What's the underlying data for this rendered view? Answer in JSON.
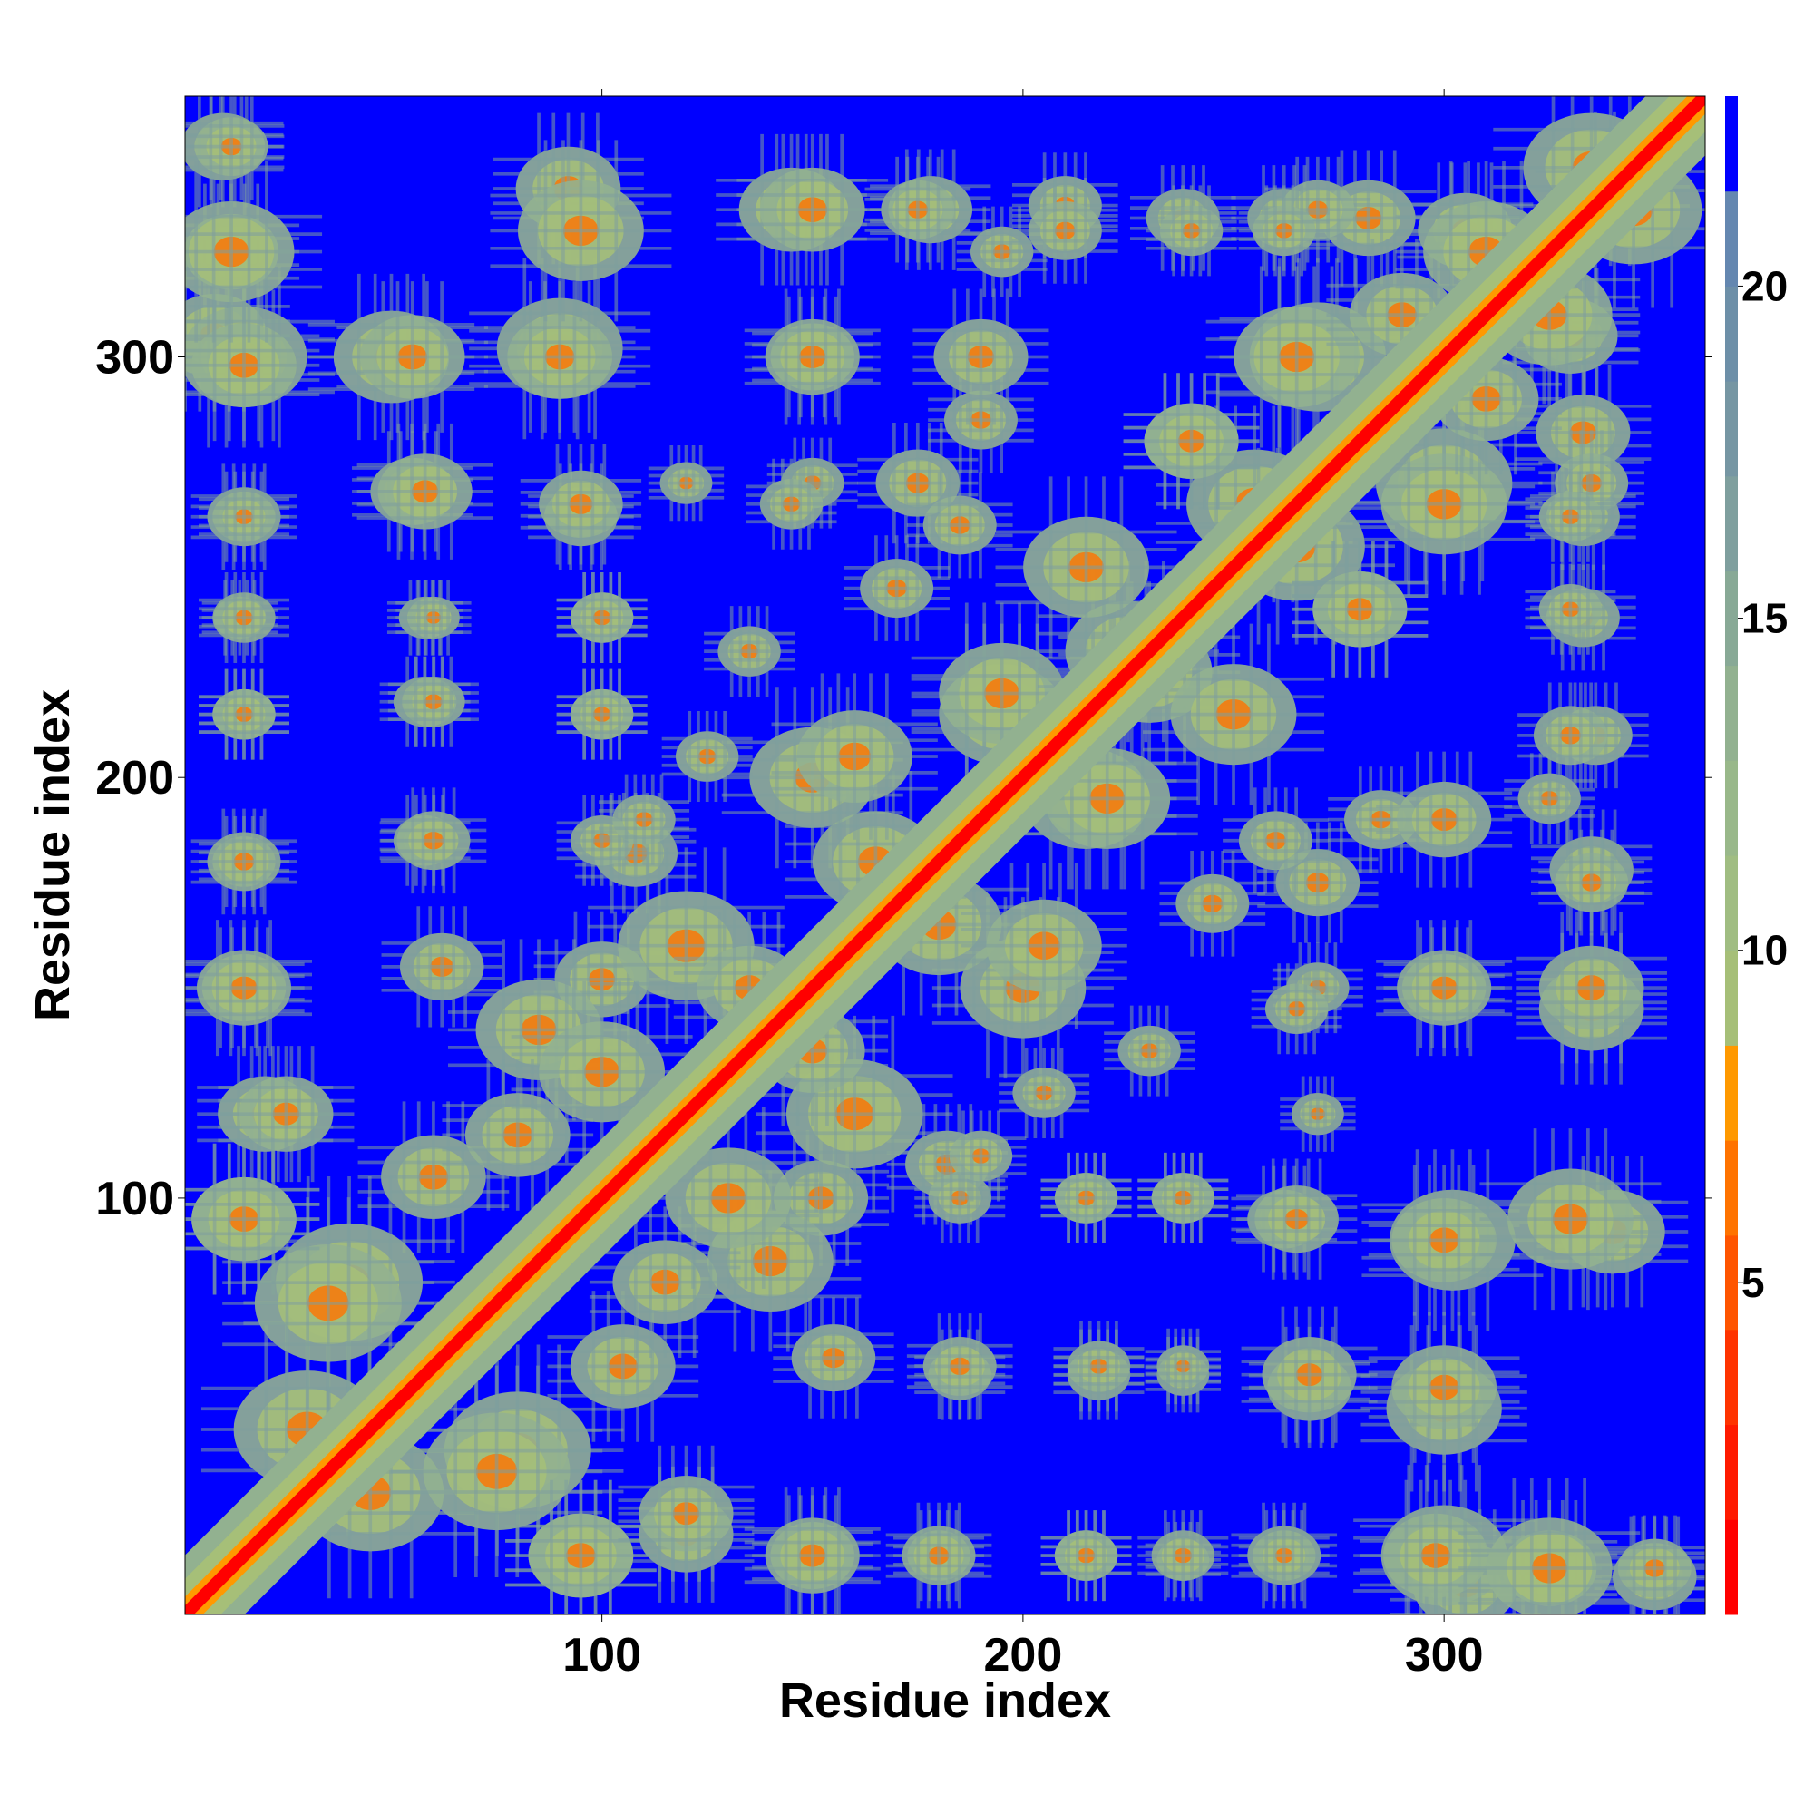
{
  "chart_data": {
    "type": "heatmap",
    "title": "",
    "xlabel": "Residue index",
    "ylabel": "Residue index",
    "residue_count": 362,
    "xlim": [
      1,
      362
    ],
    "ylim": [
      1,
      362
    ],
    "x_ticks": [
      100,
      200,
      300
    ],
    "y_ticks": [
      100,
      200,
      300
    ],
    "colorbar": {
      "ticks": [
        5,
        10,
        15,
        20
      ],
      "range": [
        0,
        22.86
      ],
      "levels": [
        {
          "upper": 1.43,
          "color": "#ff0000"
        },
        {
          "upper": 2.86,
          "color": "#ff1a00"
        },
        {
          "upper": 4.29,
          "color": "#ff3300"
        },
        {
          "upper": 5.71,
          "color": "#ff5500"
        },
        {
          "upper": 7.14,
          "color": "#ff7300"
        },
        {
          "upper": 8.57,
          "color": "#ff9900"
        },
        {
          "upper": 10.0,
          "color": "#a6bf78"
        },
        {
          "upper": 11.43,
          "color": "#a0bd82"
        },
        {
          "upper": 12.86,
          "color": "#99b88a"
        },
        {
          "upper": 14.29,
          "color": "#92b190"
        },
        {
          "upper": 15.71,
          "color": "#88a996"
        },
        {
          "upper": 17.14,
          "color": "#7f9f9e"
        },
        {
          "upper": 18.57,
          "color": "#7696a3"
        },
        {
          "upper": 20.0,
          "color": "#6d8fa8"
        },
        {
          "upper": 21.43,
          "color": "#6487b0"
        },
        {
          "upper": 22.86,
          "color": "#0000ff"
        }
      ]
    },
    "background_color": "#0000ff",
    "diagonal_color": "#ff0000",
    "contact_clusters": [
      {
        "x": 10,
        "y": 350,
        "r": 8
      },
      {
        "x": 12,
        "y": 325,
        "r": 9
      },
      {
        "x": 8,
        "y": 305,
        "r": 10
      },
      {
        "x": 15,
        "y": 300,
        "r": 12
      },
      {
        "x": 50,
        "y": 300,
        "r": 11
      },
      {
        "x": 90,
        "y": 302,
        "r": 12
      },
      {
        "x": 92,
        "y": 340,
        "r": 10
      },
      {
        "x": 145,
        "y": 335,
        "r": 10
      },
      {
        "x": 178,
        "y": 335,
        "r": 8
      },
      {
        "x": 210,
        "y": 336,
        "r": 7
      },
      {
        "x": 238,
        "y": 333,
        "r": 7
      },
      {
        "x": 262,
        "y": 333,
        "r": 7
      },
      {
        "x": 282,
        "y": 333,
        "r": 9
      },
      {
        "x": 305,
        "y": 330,
        "r": 9
      },
      {
        "x": 335,
        "y": 345,
        "r": 13
      },
      {
        "x": 55,
        "y": 268,
        "r": 8
      },
      {
        "x": 15,
        "y": 262,
        "r": 7
      },
      {
        "x": 95,
        "y": 262,
        "r": 7
      },
      {
        "x": 14,
        "y": 238,
        "r": 5
      },
      {
        "x": 58,
        "y": 238,
        "r": 5
      },
      {
        "x": 100,
        "y": 238,
        "r": 6
      },
      {
        "x": 15,
        "y": 215,
        "r": 6
      },
      {
        "x": 58,
        "y": 218,
        "r": 6
      },
      {
        "x": 100,
        "y": 215,
        "r": 6
      },
      {
        "x": 15,
        "y": 180,
        "r": 6
      },
      {
        "x": 58,
        "y": 185,
        "r": 6
      },
      {
        "x": 108,
        "y": 182,
        "r": 8
      },
      {
        "x": 15,
        "y": 150,
        "r": 8
      },
      {
        "x": 62,
        "y": 155,
        "r": 8
      },
      {
        "x": 100,
        "y": 152,
        "r": 9
      },
      {
        "x": 20,
        "y": 120,
        "r": 9
      },
      {
        "x": 60,
        "y": 105,
        "r": 10
      },
      {
        "x": 15,
        "y": 95,
        "r": 10
      },
      {
        "x": 40,
        "y": 80,
        "r": 14
      },
      {
        "x": 30,
        "y": 45,
        "r": 14
      },
      {
        "x": 75,
        "y": 35,
        "r": 14
      },
      {
        "x": 95,
        "y": 15,
        "r": 10
      },
      {
        "x": 120,
        "y": 25,
        "r": 9
      },
      {
        "x": 150,
        "y": 15,
        "r": 9
      },
      {
        "x": 180,
        "y": 15,
        "r": 7
      },
      {
        "x": 215,
        "y": 15,
        "r": 6
      },
      {
        "x": 238,
        "y": 15,
        "r": 6
      },
      {
        "x": 262,
        "y": 15,
        "r": 6
      },
      {
        "x": 298,
        "y": 15,
        "r": 10
      },
      {
        "x": 325,
        "y": 12,
        "r": 12
      },
      {
        "x": 350,
        "y": 12,
        "r": 7
      },
      {
        "x": 185,
        "y": 60,
        "r": 7
      },
      {
        "x": 218,
        "y": 60,
        "r": 6
      },
      {
        "x": 238,
        "y": 60,
        "r": 5
      },
      {
        "x": 268,
        "y": 58,
        "r": 9
      },
      {
        "x": 300,
        "y": 55,
        "r": 10
      },
      {
        "x": 300,
        "y": 90,
        "r": 10
      },
      {
        "x": 265,
        "y": 95,
        "r": 8
      },
      {
        "x": 330,
        "y": 95,
        "r": 12
      },
      {
        "x": 238,
        "y": 100,
        "r": 6
      },
      {
        "x": 215,
        "y": 100,
        "r": 6
      },
      {
        "x": 185,
        "y": 100,
        "r": 6
      },
      {
        "x": 140,
        "y": 85,
        "r": 12
      },
      {
        "x": 115,
        "y": 80,
        "r": 10
      },
      {
        "x": 160,
        "y": 120,
        "r": 13
      },
      {
        "x": 100,
        "y": 130,
        "r": 12
      },
      {
        "x": 135,
        "y": 150,
        "r": 10
      },
      {
        "x": 150,
        "y": 200,
        "r": 12
      },
      {
        "x": 180,
        "y": 165,
        "r": 12
      },
      {
        "x": 205,
        "y": 160,
        "r": 11
      },
      {
        "x": 215,
        "y": 195,
        "r": 12
      },
      {
        "x": 195,
        "y": 220,
        "r": 12
      },
      {
        "x": 225,
        "y": 230,
        "r": 12
      },
      {
        "x": 250,
        "y": 215,
        "r": 12
      },
      {
        "x": 255,
        "y": 265,
        "r": 13
      },
      {
        "x": 270,
        "y": 300,
        "r": 13
      },
      {
        "x": 300,
        "y": 265,
        "r": 12
      },
      {
        "x": 310,
        "y": 290,
        "r": 10
      },
      {
        "x": 325,
        "y": 310,
        "r": 12
      },
      {
        "x": 280,
        "y": 240,
        "r": 9
      },
      {
        "x": 240,
        "y": 280,
        "r": 9
      },
      {
        "x": 285,
        "y": 190,
        "r": 7
      },
      {
        "x": 325,
        "y": 195,
        "r": 6
      },
      {
        "x": 335,
        "y": 175,
        "r": 7
      },
      {
        "x": 335,
        "y": 150,
        "r": 10
      },
      {
        "x": 300,
        "y": 150,
        "r": 8
      },
      {
        "x": 270,
        "y": 150,
        "r": 6
      },
      {
        "x": 245,
        "y": 170,
        "r": 7
      },
      {
        "x": 330,
        "y": 240,
        "r": 6
      },
      {
        "x": 330,
        "y": 210,
        "r": 7
      },
      {
        "x": 335,
        "y": 270,
        "r": 7
      },
      {
        "x": 330,
        "y": 262,
        "r": 6
      },
      {
        "x": 175,
        "y": 270,
        "r": 8
      },
      {
        "x": 190,
        "y": 300,
        "r": 9
      },
      {
        "x": 150,
        "y": 300,
        "r": 9
      },
      {
        "x": 185,
        "y": 260,
        "r": 7
      },
      {
        "x": 145,
        "y": 265,
        "r": 6
      },
      {
        "x": 120,
        "y": 270,
        "r": 5
      },
      {
        "x": 125,
        "y": 205,
        "r": 6
      },
      {
        "x": 135,
        "y": 230,
        "r": 6
      },
      {
        "x": 110,
        "y": 190,
        "r": 6
      }
    ]
  }
}
